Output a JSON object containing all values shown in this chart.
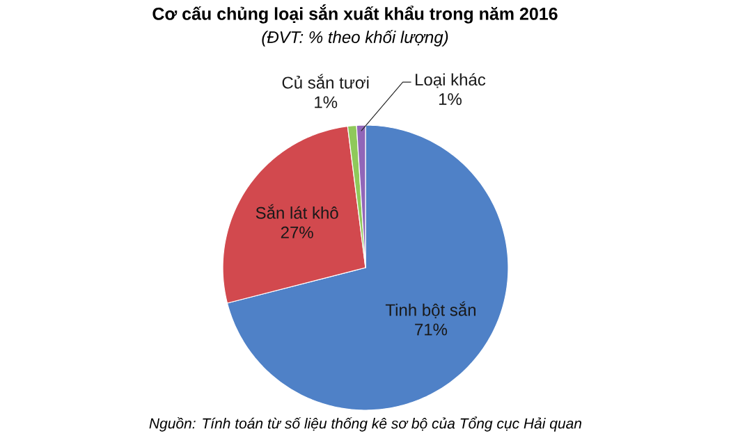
{
  "chart_data": {
    "type": "pie",
    "title": "Cơ cấu chủng loại sắn xuất khẩu trong năm 2016",
    "subtitle": "(ĐVT: % theo khối lượng)",
    "categories": [
      "Tinh bột sắn",
      "Sắn lát khô",
      "Củ sắn tươi",
      "Loại khác"
    ],
    "values": [
      71,
      27,
      1,
      1
    ],
    "value_labels": [
      "71%",
      "27%",
      "1%",
      "1%"
    ],
    "colors": [
      "#4f81c7",
      "#d2494e",
      "#8fc95a",
      "#9166b8"
    ],
    "annotations": [
      "Nguồn: Tính toán từ số liệu thống kê sơ bộ của Tổng cục Hải quan"
    ],
    "legend": false
  }
}
